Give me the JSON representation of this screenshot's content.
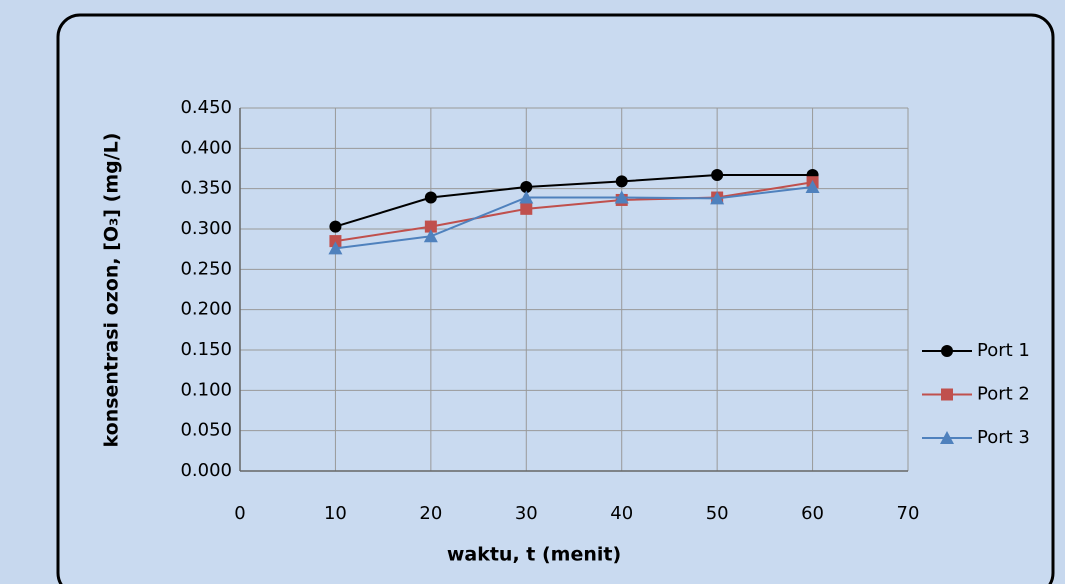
{
  "chart_data": {
    "type": "line",
    "x_label": "waktu, t (menit)",
    "y_label": "konsentrasi ozon, [O₃] (mg/L)",
    "x": [
      10,
      20,
      30,
      40,
      50,
      60
    ],
    "series": [
      {
        "name": "Port 1",
        "color": "#000000",
        "marker": "circle",
        "values": [
          0.303,
          0.339,
          0.352,
          0.359,
          0.367,
          0.367
        ]
      },
      {
        "name": "Port 2",
        "color": "#c0504d",
        "marker": "square",
        "values": [
          0.285,
          0.303,
          0.325,
          0.336,
          0.339,
          0.358
        ]
      },
      {
        "name": "Port 3",
        "color": "#4f81bd",
        "marker": "triangle",
        "values": [
          0.276,
          0.291,
          0.339,
          0.339,
          0.338,
          0.352
        ]
      }
    ],
    "xlim": [
      0,
      70
    ],
    "xticks": [
      0,
      10,
      20,
      30,
      40,
      50,
      60,
      70
    ],
    "ylim": [
      0,
      0.45
    ],
    "yticks": [
      {
        "value": 0,
        "label": "0.000"
      },
      {
        "value": 0.05,
        "label": "0.050"
      },
      {
        "value": 0.1,
        "label": "0.100"
      },
      {
        "value": 0.15,
        "label": "0.150"
      },
      {
        "value": 0.2,
        "label": "0.200"
      },
      {
        "value": 0.25,
        "label": "0.250"
      },
      {
        "value": 0.3,
        "label": "0.300"
      },
      {
        "value": 0.35,
        "label": "0.350"
      },
      {
        "value": 0.4,
        "label": "0.400"
      },
      {
        "value": 0.45,
        "label": "0.450"
      }
    ],
    "grid": true,
    "legend": "right"
  }
}
